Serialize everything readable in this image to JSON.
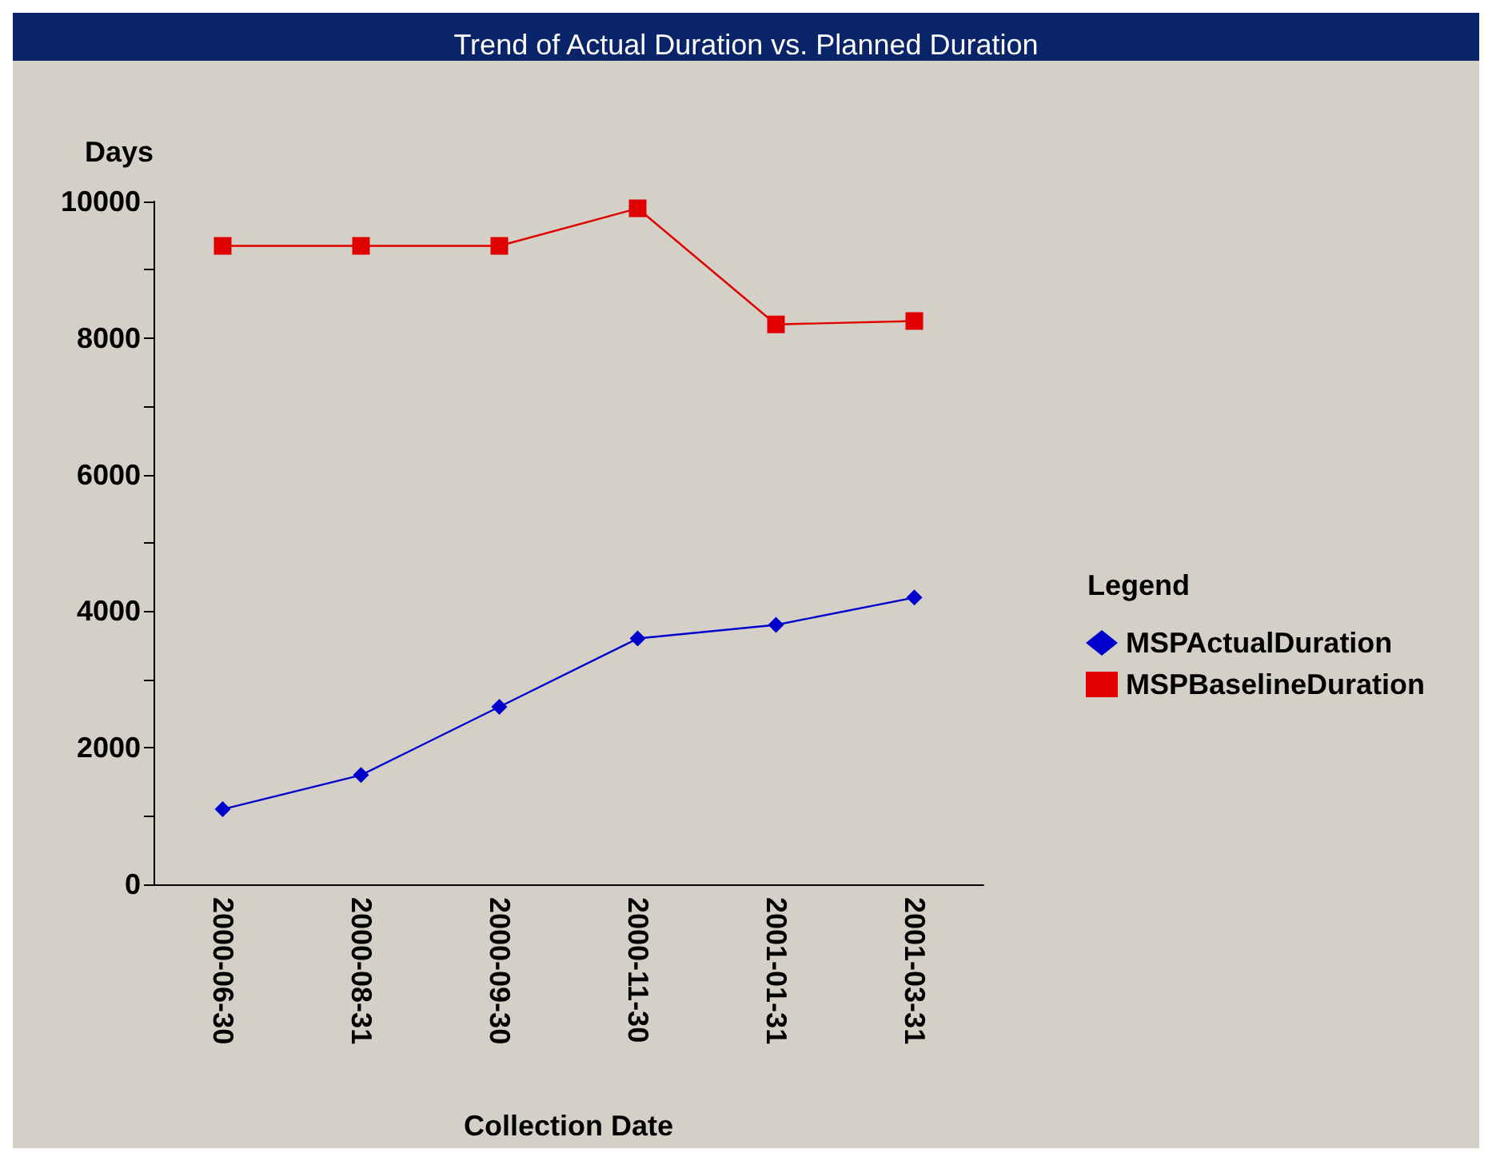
{
  "chart_data": {
    "type": "line",
    "title": "Trend of Actual Duration vs. Planned Duration",
    "xlabel": "Collection Date",
    "ylabel": "Days",
    "categories": [
      "2000-06-30",
      "2000-08-31",
      "2000-09-30",
      "2000-11-30",
      "2001-01-31",
      "2001-03-31"
    ],
    "series": [
      {
        "name": "MSPActualDuration",
        "color": "#0000cc",
        "marker": "diamond",
        "values": [
          1100,
          1600,
          2600,
          3600,
          3800,
          4200
        ]
      },
      {
        "name": "MSPBaselineDuration",
        "color": "#e00000",
        "marker": "square",
        "values": [
          9350,
          9350,
          9350,
          9900,
          8200,
          8250
        ]
      }
    ],
    "ylim": [
      0,
      10000
    ],
    "yticks": [
      0,
      2000,
      4000,
      6000,
      8000,
      10000
    ],
    "grid": false,
    "legend_title": "Legend",
    "legend": "right"
  }
}
